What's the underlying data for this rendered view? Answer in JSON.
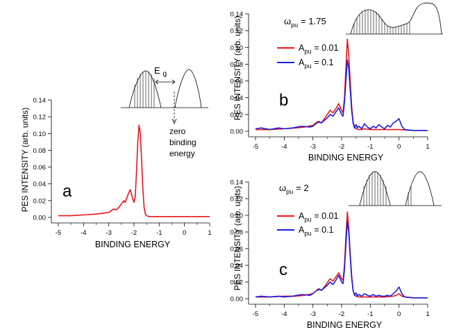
{
  "chart_data": [
    {
      "type": "line",
      "panel_label": "a",
      "xlabel": "BINDING ENERGY",
      "ylabel": "PES INTENSITY (arb. units)",
      "xlim": [
        -5,
        1
      ],
      "ylim": [
        0,
        0.14
      ],
      "xticks": [
        "-5",
        "-4",
        "-3",
        "-2",
        "-1",
        "0",
        "1"
      ],
      "yticks": [
        "0.00",
        "0.02",
        "0.04",
        "0.06",
        "0.08",
        "0.10",
        "0.12",
        "0.14"
      ],
      "inset_labels": {
        "gap": "E",
        "gap_sub": "g",
        "zero": [
          "zero",
          "binding",
          "energy"
        ]
      },
      "series": [
        {
          "color": "#e8141a",
          "x": [
            -5,
            -4.5,
            -4,
            -3.5,
            -3.2,
            -3.0,
            -2.9,
            -2.8,
            -2.7,
            -2.6,
            -2.5,
            -2.4,
            -2.35,
            -2.3,
            -2.25,
            -2.2,
            -2.15,
            -2.1,
            -2.05,
            -2.0,
            -1.95,
            -1.9,
            -1.85,
            -1.8,
            -1.75,
            -1.7,
            -1.65,
            -1.6,
            -1.55,
            -1.5,
            -1.4,
            -1.3,
            -1.0,
            -0.5,
            0,
            0.5,
            1
          ],
          "y": [
            0.002,
            0.002,
            0.003,
            0.004,
            0.005,
            0.006,
            0.008,
            0.01,
            0.009,
            0.012,
            0.016,
            0.02,
            0.018,
            0.022,
            0.026,
            0.03,
            0.033,
            0.028,
            0.022,
            0.018,
            0.025,
            0.055,
            0.09,
            0.11,
            0.1,
            0.07,
            0.035,
            0.012,
            0.004,
            0.002,
            0.001,
            0.001,
            0.001,
            0.001,
            0.001,
            0.001,
            0.001
          ]
        }
      ]
    },
    {
      "type": "line",
      "panel_label": "b",
      "xlabel": "BINDING ENERGY",
      "ylabel": "PES INTENSITY (arb. units)",
      "xlim": [
        -5,
        1
      ],
      "ylim": [
        0,
        0.14
      ],
      "xticks": [
        "-5",
        "-4",
        "-3",
        "-2",
        "-1",
        "0",
        "1"
      ],
      "yticks": [
        "0.00",
        "0.02",
        "0.04",
        "0.06",
        "0.08",
        "0.10",
        "0.12",
        "0.14"
      ],
      "omega": {
        "symbol": "ω",
        "sub": "pu",
        "value": "= 1.75"
      },
      "series": [
        {
          "name": "A",
          "name_sub": "pu",
          "name_value": "= 0.01",
          "color": "#e8141a",
          "x": [
            -5,
            -4.5,
            -4,
            -3.6,
            -3.3,
            -3.0,
            -2.9,
            -2.8,
            -2.7,
            -2.6,
            -2.5,
            -2.4,
            -2.3,
            -2.2,
            -2.1,
            -2.0,
            -1.95,
            -1.9,
            -1.85,
            -1.8,
            -1.75,
            -1.7,
            -1.65,
            -1.6,
            -1.55,
            -1.5,
            -1.4,
            -1.3,
            -1.2,
            -1.0,
            -0.5,
            0,
            0.5,
            1
          ],
          "y": [
            0.002,
            0.002,
            0.003,
            0.004,
            0.005,
            0.007,
            0.01,
            0.012,
            0.01,
            0.015,
            0.02,
            0.025,
            0.022,
            0.027,
            0.033,
            0.025,
            0.022,
            0.04,
            0.075,
            0.11,
            0.09,
            0.06,
            0.03,
            0.012,
            0.005,
            0.003,
            0.002,
            0.002,
            0.003,
            0.002,
            0.002,
            0.002,
            0.001,
            0.001
          ]
        },
        {
          "name": "A",
          "name_sub": "pu",
          "name_value": "= 0.1",
          "color": "#1c1ce0",
          "x": [
            -5,
            -4.8,
            -4.5,
            -4.2,
            -4,
            -3.7,
            -3.4,
            -3.1,
            -3.0,
            -2.9,
            -2.8,
            -2.7,
            -2.6,
            -2.5,
            -2.4,
            -2.3,
            -2.2,
            -2.1,
            -2.0,
            -1.95,
            -1.9,
            -1.85,
            -1.8,
            -1.75,
            -1.7,
            -1.65,
            -1.6,
            -1.55,
            -1.5,
            -1.45,
            -1.4,
            -1.3,
            -1.2,
            -1.1,
            -1.0,
            -0.9,
            -0.8,
            -0.7,
            -0.6,
            -0.5,
            -0.4,
            -0.3,
            -0.2,
            -0.1,
            0,
            0.1,
            0.2,
            0.5,
            1
          ],
          "y": [
            0.003,
            0.004,
            0.002,
            0.004,
            0.003,
            0.004,
            0.006,
            0.005,
            0.006,
            0.009,
            0.011,
            0.01,
            0.013,
            0.016,
            0.02,
            0.018,
            0.023,
            0.028,
            0.02,
            0.018,
            0.035,
            0.06,
            0.085,
            0.075,
            0.05,
            0.025,
            0.01,
            0.004,
            0.008,
            0.004,
            0.006,
            0.003,
            0.009,
            0.005,
            0.003,
            0.006,
            0.004,
            0.008,
            0.005,
            0.003,
            0.007,
            0.005,
            0.01,
            0.012,
            0.015,
            0.006,
            0.002,
            0.001,
            0.001
          ]
        }
      ]
    },
    {
      "type": "line",
      "panel_label": "c",
      "xlabel": "BINDING ENERGY",
      "ylabel": "PES INTENSITY (arb. units)",
      "xlim": [
        -5,
        1
      ],
      "ylim": [
        0,
        0.14
      ],
      "xticks": [
        "-5",
        "-4",
        "-3",
        "-2",
        "-1",
        "0",
        "1"
      ],
      "yticks": [
        "0.00",
        "0.02",
        "0.04",
        "0.06",
        "0.08",
        "0.10",
        "0.12",
        "0.14"
      ],
      "omega": {
        "symbol": "ω",
        "sub": "pu",
        "value": "= 2"
      },
      "series": [
        {
          "name": "A",
          "name_sub": "pu",
          "name_value": "= 0.01",
          "color": "#e8141a",
          "x": [
            -5,
            -4.5,
            -4,
            -3.6,
            -3.3,
            -3.0,
            -2.9,
            -2.8,
            -2.7,
            -2.6,
            -2.5,
            -2.4,
            -2.3,
            -2.2,
            -2.1,
            -2.0,
            -1.95,
            -1.9,
            -1.85,
            -1.8,
            -1.75,
            -1.7,
            -1.65,
            -1.6,
            -1.55,
            -1.5,
            -1.4,
            -1.3,
            -1.2,
            -1.0,
            -0.8,
            -0.5,
            -0.2,
            -0.1,
            0,
            0.1,
            0.2,
            0.5,
            1
          ],
          "y": [
            0.002,
            0.002,
            0.003,
            0.003,
            0.004,
            0.006,
            0.009,
            0.012,
            0.01,
            0.014,
            0.019,
            0.024,
            0.021,
            0.026,
            0.031,
            0.024,
            0.022,
            0.04,
            0.075,
            0.104,
            0.085,
            0.055,
            0.028,
            0.01,
            0.004,
            0.003,
            0.002,
            0.002,
            0.002,
            0.002,
            0.002,
            0.002,
            0.003,
            0.004,
            0.006,
            0.003,
            0.002,
            0.001,
            0.001
          ]
        },
        {
          "name": "A",
          "name_sub": "pu",
          "name_value": "= 0.1",
          "color": "#1c1ce0",
          "x": [
            -5,
            -4.8,
            -4.5,
            -4.2,
            -4,
            -3.7,
            -3.4,
            -3.1,
            -3.0,
            -2.9,
            -2.8,
            -2.7,
            -2.6,
            -2.5,
            -2.4,
            -2.3,
            -2.2,
            -2.1,
            -2.0,
            -1.95,
            -1.9,
            -1.85,
            -1.8,
            -1.75,
            -1.7,
            -1.65,
            -1.6,
            -1.55,
            -1.5,
            -1.45,
            -1.4,
            -1.3,
            -1.2,
            -1.1,
            -1.0,
            -0.9,
            -0.8,
            -0.7,
            -0.6,
            -0.5,
            -0.4,
            -0.3,
            -0.2,
            -0.1,
            0,
            0.1,
            0.2,
            0.5,
            1
          ],
          "y": [
            0.002,
            0.003,
            0.002,
            0.003,
            0.002,
            0.003,
            0.005,
            0.004,
            0.006,
            0.009,
            0.011,
            0.01,
            0.013,
            0.016,
            0.02,
            0.017,
            0.022,
            0.028,
            0.02,
            0.018,
            0.035,
            0.065,
            0.093,
            0.08,
            0.05,
            0.025,
            0.01,
            0.004,
            0.007,
            0.003,
            0.005,
            0.003,
            0.006,
            0.004,
            0.003,
            0.005,
            0.003,
            0.004,
            0.003,
            0.003,
            0.004,
            0.003,
            0.006,
            0.009,
            0.014,
            0.006,
            0.002,
            0.001,
            0.001
          ]
        }
      ]
    }
  ]
}
